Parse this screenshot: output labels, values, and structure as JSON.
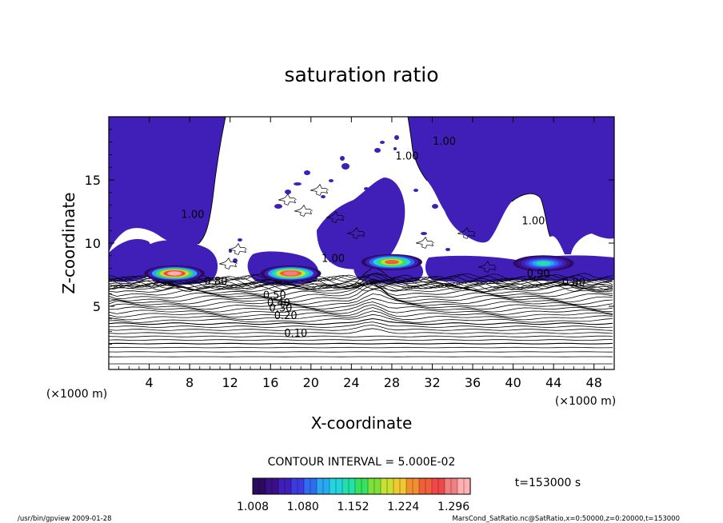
{
  "chart_data": {
    "type": "contour",
    "title": "saturation ratio",
    "xlabel": "X-coordinate",
    "ylabel": "Z-coordinate",
    "x_unit": "(×1000 m)",
    "z_unit": "(×1000 m)",
    "xlim": [
      0,
      50
    ],
    "ylim": [
      0,
      20
    ],
    "x_ticks": [
      4,
      8,
      12,
      16,
      20,
      24,
      28,
      32,
      36,
      40,
      44,
      48
    ],
    "y_ticks": [
      5,
      10,
      15
    ],
    "contour_interval_text": "CONTOUR INTERVAL = 5.000E-02",
    "time_label": "t=153000 s",
    "colorbar": {
      "min": 1.008,
      "max": 1.32,
      "tick_labels": [
        "1.008",
        "1.080",
        "1.152",
        "1.224",
        "1.296"
      ],
      "colors": [
        "#2b0b60",
        "#3a1088",
        "#3f1fb8",
        "#3b3be0",
        "#2f6cf2",
        "#28a8f0",
        "#23d3de",
        "#22e0a8",
        "#36e060",
        "#7be03a",
        "#c8e034",
        "#f0c830",
        "#f09030",
        "#f05e3a",
        "#f04848",
        "#f08080",
        "#ffb0b0"
      ]
    },
    "contour_labels": [
      {
        "text": "0.10",
        "x": 18.5,
        "z": 2.6
      },
      {
        "text": "0.20",
        "x": 17.5,
        "z": 4.0
      },
      {
        "text": "0.30",
        "x": 17.0,
        "z": 4.6
      },
      {
        "text": "0.40",
        "x": 16.8,
        "z": 5.0
      },
      {
        "text": "0.50",
        "x": 16.4,
        "z": 5.6
      },
      {
        "text": "0.80",
        "x": 10.6,
        "z": 6.7
      },
      {
        "text": "1.00",
        "x": 8.3,
        "z": 12.0
      },
      {
        "text": "1.00",
        "x": 22.2,
        "z": 8.5
      },
      {
        "text": "1.00",
        "x": 29.5,
        "z": 16.6
      },
      {
        "text": "1.00",
        "x": 33.2,
        "z": 17.8
      },
      {
        "text": "1.00",
        "x": 42.0,
        "z": 11.5
      },
      {
        "text": "0.90",
        "x": 42.5,
        "z": 7.3
      },
      {
        "text": "0.80",
        "x": 46.0,
        "z": 6.6
      }
    ],
    "cells": [
      {
        "x": 6.5,
        "z": 7.6,
        "peak": 1.32
      },
      {
        "x": 18.0,
        "z": 7.6,
        "peak": 1.3
      },
      {
        "x": 28.0,
        "z": 8.5,
        "peak": 1.25
      },
      {
        "x": 43.0,
        "z": 8.4,
        "peak": 1.14
      }
    ]
  },
  "footer": {
    "left": "/usr/bin/gpview  2009-01-28",
    "right": "MarsCond_SatRatio.nc@SatRatio,x=0:50000,z=0:20000,t=153000"
  }
}
